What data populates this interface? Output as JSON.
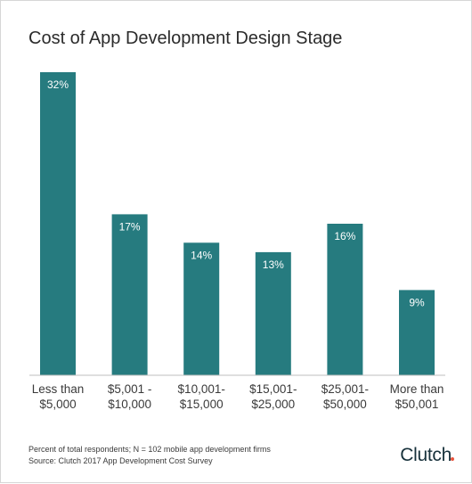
{
  "chart_data": {
    "type": "bar",
    "title": "Cost of App Development Design Stage",
    "categories": [
      [
        "Less than",
        "$5,000"
      ],
      [
        "$5,001 -",
        "$10,000"
      ],
      [
        "$10,001-",
        "$15,000"
      ],
      [
        "$15,001-",
        "$25,000"
      ],
      [
        "$25,001-",
        "$50,000"
      ],
      [
        "More than",
        "$50,001"
      ]
    ],
    "values": [
      32,
      17,
      14,
      13,
      16,
      9
    ],
    "value_labels": [
      "32%",
      "17%",
      "14%",
      "13%",
      "16%",
      "9%"
    ],
    "unit": "%",
    "ylim": [
      0,
      32
    ],
    "grid": false,
    "legend": "none",
    "colors": {
      "bar": "#267B7F",
      "baseline": "#bfbfbf"
    }
  },
  "footnotes": {
    "line1": "Percent of total respondents; N = 102 mobile app development firms",
    "line2": "Source: Clutch 2017 App Development Cost Survey"
  },
  "logo": {
    "text": "Clutch"
  }
}
